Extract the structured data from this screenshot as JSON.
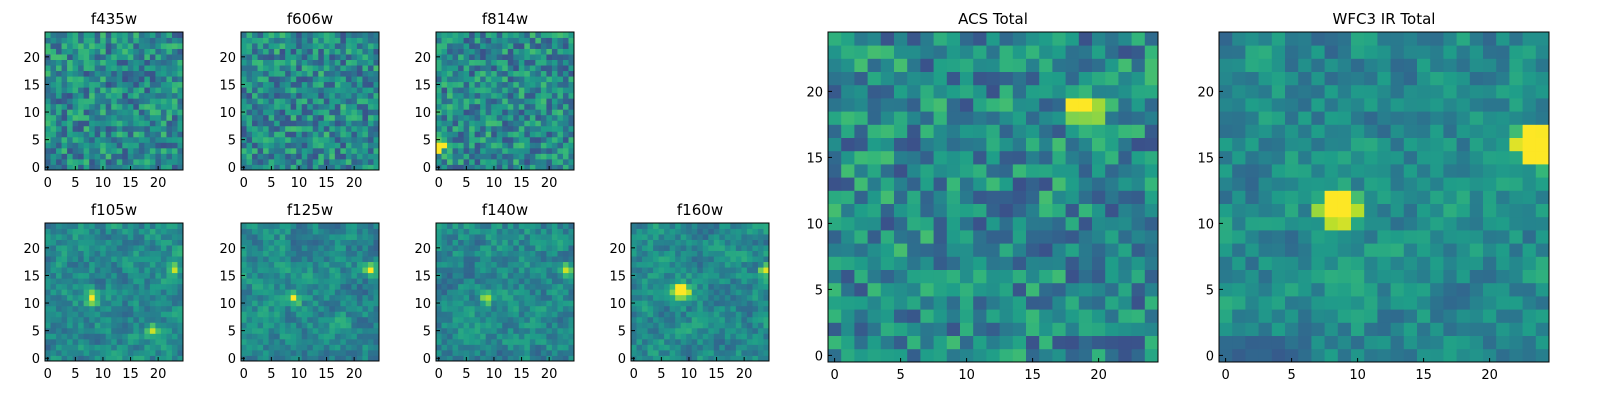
{
  "chart_data": [
    {
      "type": "heatmap",
      "title": "f435w",
      "grid": [
        25,
        25
      ],
      "xticks": [
        "0",
        "5",
        "10",
        "15",
        "20"
      ],
      "yticks": [
        "0",
        "5",
        "10",
        "15",
        "20"
      ],
      "seed": 11,
      "hotspots": []
    },
    {
      "type": "heatmap",
      "title": "f606w",
      "grid": [
        25,
        25
      ],
      "xticks": [
        "0",
        "5",
        "10",
        "15",
        "20"
      ],
      "yticks": [
        "0",
        "5",
        "10",
        "15",
        "20"
      ],
      "seed": 23,
      "hotspots": []
    },
    {
      "type": "heatmap",
      "title": "f814w",
      "grid": [
        25,
        25
      ],
      "xticks": [
        "0",
        "5",
        "10",
        "15",
        "20"
      ],
      "yticks": [
        "0",
        "5",
        "10",
        "15",
        "20"
      ],
      "seed": 37,
      "hotspots": [
        [
          0,
          4,
          0.9
        ]
      ]
    },
    {
      "type": "heatmap",
      "title": "f105w",
      "grid": [
        25,
        25
      ],
      "xticks": [
        "0",
        "5",
        "10",
        "15",
        "20"
      ],
      "yticks": [
        "0",
        "5",
        "10",
        "15",
        "20"
      ],
      "seed": 41,
      "hotspots": [
        [
          8,
          11,
          0.5
        ],
        [
          19,
          5,
          0.5
        ],
        [
          23,
          16,
          0.45
        ]
      ]
    },
    {
      "type": "heatmap",
      "title": "f125w",
      "grid": [
        25,
        25
      ],
      "xticks": [
        "0",
        "5",
        "10",
        "15",
        "20"
      ],
      "yticks": [
        "0",
        "5",
        "10",
        "15",
        "20"
      ],
      "seed": 53,
      "hotspots": [
        [
          9,
          11,
          0.55
        ],
        [
          23,
          16,
          0.5
        ]
      ]
    },
    {
      "type": "heatmap",
      "title": "f140w",
      "grid": [
        25,
        25
      ],
      "xticks": [
        "0",
        "5",
        "10",
        "15",
        "20"
      ],
      "yticks": [
        "0",
        "5",
        "10",
        "15",
        "20"
      ],
      "seed": 67,
      "hotspots": [
        [
          9,
          11,
          0.5
        ],
        [
          23,
          16,
          0.45
        ]
      ]
    },
    {
      "type": "heatmap",
      "title": "f160w",
      "grid": [
        25,
        25
      ],
      "xticks": [
        "0",
        "5",
        "10",
        "15",
        "20"
      ],
      "yticks": [
        "0",
        "5",
        "10",
        "15",
        "20"
      ],
      "seed": 71,
      "hotspots": [
        [
          8,
          12,
          0.75
        ],
        [
          9,
          12,
          0.7
        ],
        [
          24,
          16,
          0.6
        ]
      ]
    },
    {
      "type": "heatmap",
      "title": "ACS Total",
      "grid": [
        25,
        25
      ],
      "xticks": [
        "0",
        "5",
        "10",
        "15",
        "20"
      ],
      "yticks": [
        "0",
        "5",
        "10",
        "15",
        "20"
      ],
      "seed": 83,
      "hotspots": [
        [
          19,
          19,
          0.9
        ]
      ]
    },
    {
      "type": "heatmap",
      "title": "WFC3 IR Total",
      "grid": [
        25,
        25
      ],
      "xticks": [
        "0",
        "5",
        "10",
        "15",
        "20"
      ],
      "yticks": [
        "0",
        "5",
        "10",
        "15",
        "20"
      ],
      "seed": 97,
      "hotspots": [
        [
          8,
          11,
          0.8
        ],
        [
          9,
          11,
          0.85
        ],
        [
          23,
          16,
          0.7
        ],
        [
          24,
          16,
          0.75
        ]
      ]
    }
  ]
}
